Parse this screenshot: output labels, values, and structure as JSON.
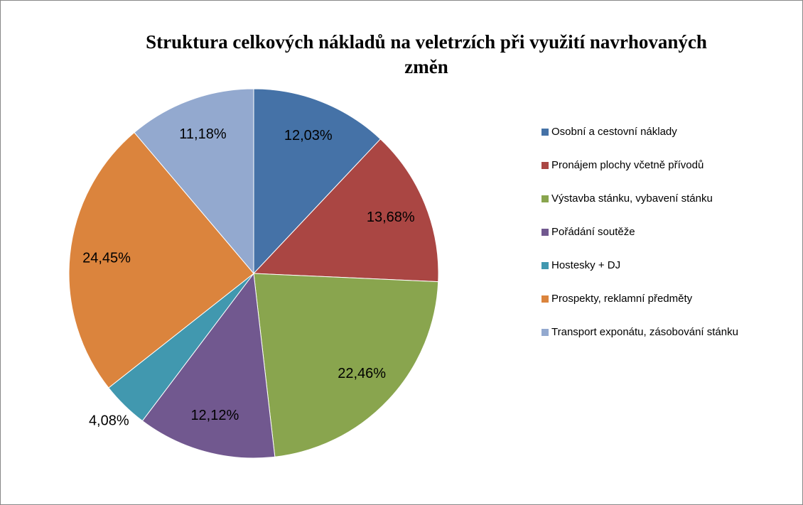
{
  "chart_data": {
    "type": "pie",
    "title": "Struktura celkových nákladů na veletrzích při využití navrhovaných změn",
    "categories": [
      "Osobní a cestovní náklady",
      "Pronájem plochy včetně přívodů",
      "Výstavba stánku, vybavení stánku",
      "Pořádání soutěže",
      "Hostesky + DJ",
      "Prospekty, reklamní předměty",
      "Transport exponátu, zásobování stánku"
    ],
    "values": [
      12.03,
      13.68,
      22.46,
      12.12,
      4.08,
      24.45,
      11.18
    ],
    "value_labels": [
      "12,03%",
      "13,68%",
      "22,46%",
      "12,12%",
      "4,08%",
      "24,45%",
      "11,18%"
    ],
    "colors": [
      "#4572a7",
      "#aa4643",
      "#89a54e",
      "#71588f",
      "#4198af",
      "#db843d",
      "#93a9cf"
    ],
    "legend": "right"
  }
}
